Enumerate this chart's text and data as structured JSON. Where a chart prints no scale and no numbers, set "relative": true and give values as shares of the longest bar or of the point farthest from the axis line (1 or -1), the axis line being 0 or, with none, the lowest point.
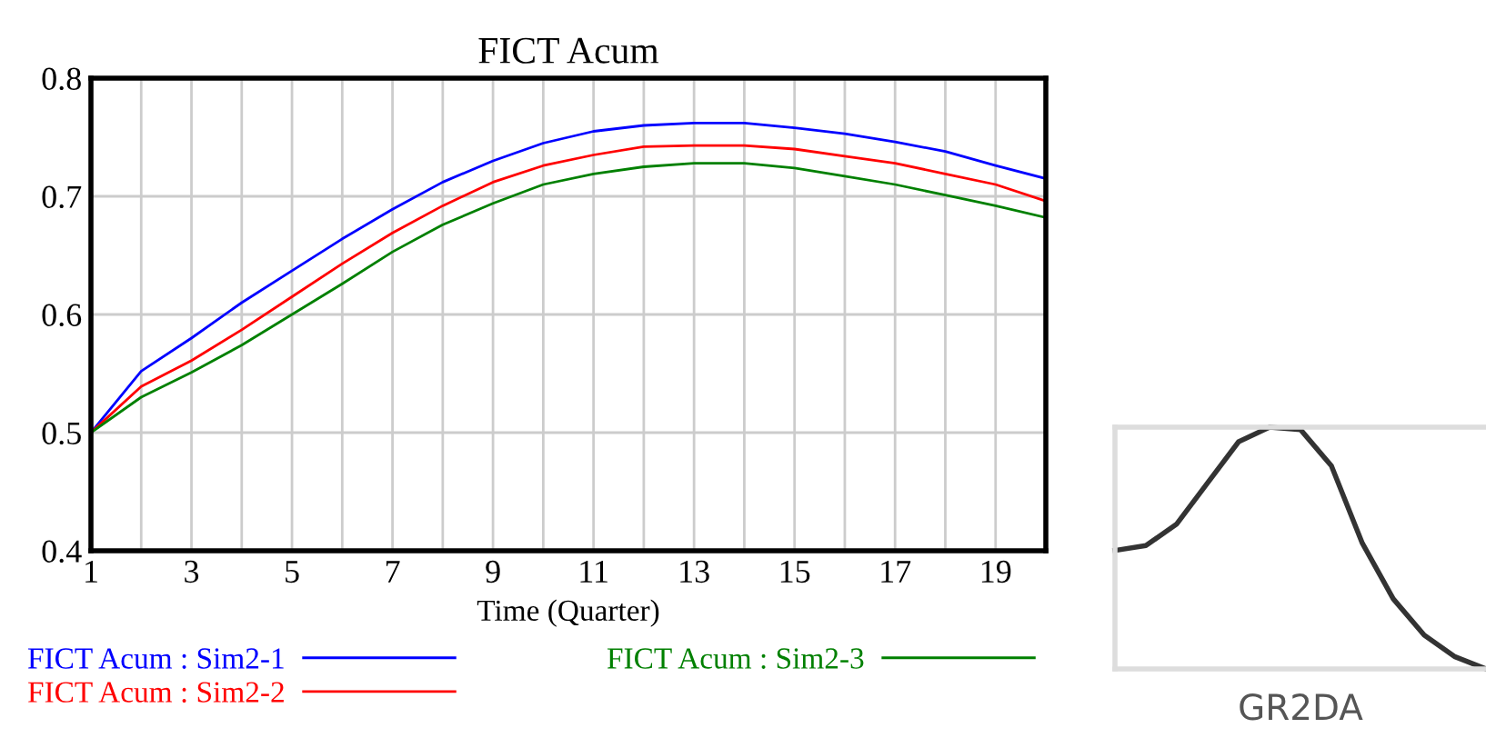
{
  "chart_data": [
    {
      "type": "line",
      "title": "FICT Acum",
      "xlabel": "Time (Quarter)",
      "x": [
        1,
        2,
        3,
        4,
        5,
        6,
        7,
        8,
        9,
        10,
        11,
        12,
        13,
        14,
        15,
        16,
        17,
        18,
        19,
        20
      ],
      "xlim": [
        1,
        20
      ],
      "xticks": [
        1,
        {
          "value": 2,
          "label": null
        },
        3,
        {
          "value": 4,
          "label": null
        },
        5,
        {
          "value": 6,
          "label": null
        },
        7,
        {
          "value": 8,
          "label": null
        },
        9,
        {
          "value": 10,
          "label": null
        },
        11,
        {
          "value": 12,
          "label": null
        },
        13,
        {
          "value": 14,
          "label": null
        },
        15,
        {
          "value": 16,
          "label": null
        },
        17,
        {
          "value": 18,
          "label": null
        },
        19,
        {
          "value": 20,
          "label": null
        }
      ],
      "ylim": [
        0.4,
        0.8
      ],
      "yticks": [
        0.4,
        0.5,
        0.6,
        0.7,
        0.8
      ],
      "grid": true,
      "legend": "bottom",
      "series": [
        {
          "name": "FICT Acum : Sim2-1",
          "color": "#0000ff",
          "values": [
            0.5,
            0.552,
            0.58,
            0.61,
            0.637,
            0.664,
            0.689,
            0.712,
            0.73,
            0.745,
            0.755,
            0.76,
            0.762,
            0.762,
            0.758,
            0.753,
            0.746,
            0.738,
            0.726,
            0.715
          ]
        },
        {
          "name": "FICT Acum : Sim2-2",
          "color": "#ff0000",
          "values": [
            0.5,
            0.539,
            0.561,
            0.587,
            0.615,
            0.643,
            0.669,
            0.692,
            0.712,
            0.726,
            0.735,
            0.742,
            0.743,
            0.743,
            0.74,
            0.734,
            0.728,
            0.719,
            0.71,
            0.696
          ]
        },
        {
          "name": "FICT Acum : Sim2-3",
          "color": "#008000",
          "values": [
            0.5,
            0.53,
            0.551,
            0.574,
            0.6,
            0.626,
            0.653,
            0.676,
            0.694,
            0.71,
            0.719,
            0.725,
            0.728,
            0.728,
            0.724,
            0.717,
            0.71,
            0.701,
            0.692,
            0.682
          ]
        }
      ]
    },
    {
      "type": "line",
      "title": "GR2DA",
      "relative": true,
      "color": "#333333",
      "categories": [
        null,
        null,
        null,
        null,
        null,
        null,
        null,
        null,
        null,
        null,
        null,
        null,
        null
      ],
      "values": [
        0.49,
        0.51,
        0.6,
        0.77,
        0.94,
        1.0,
        0.99,
        0.84,
        0.52,
        0.29,
        0.14,
        0.05,
        0.0
      ]
    }
  ]
}
